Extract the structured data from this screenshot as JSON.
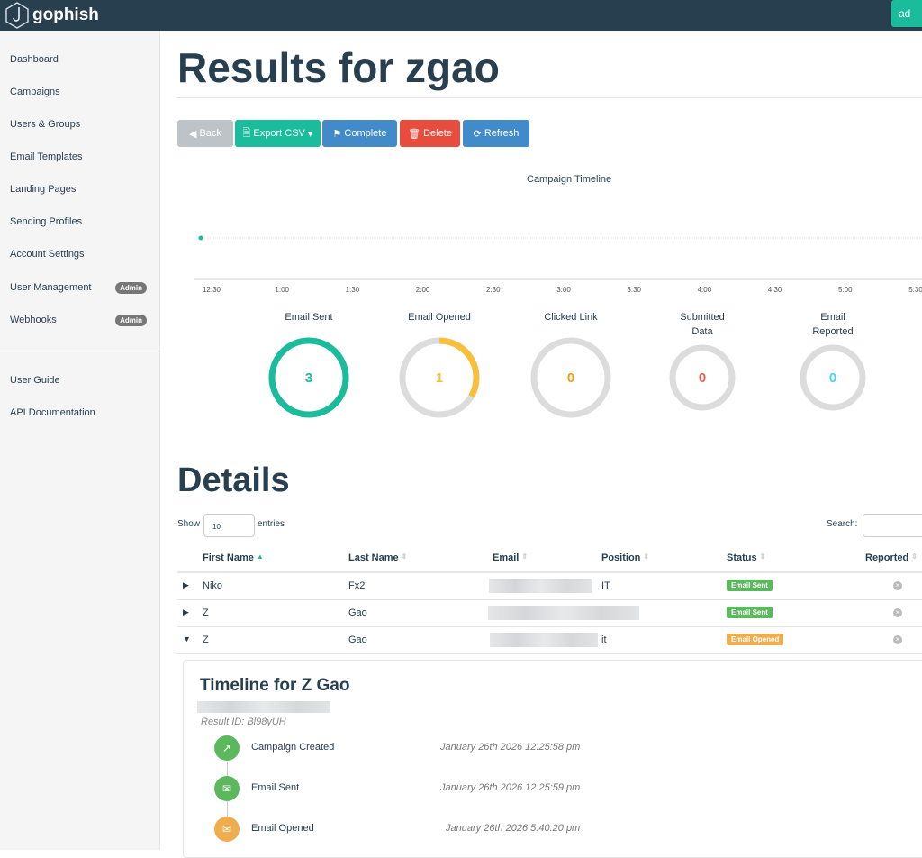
{
  "navbar": {
    "brand": "gophish",
    "user_label": "ad"
  },
  "sidebar": {
    "items": [
      {
        "label": "Dashboard"
      },
      {
        "label": "Campaigns"
      },
      {
        "label": "Users & Groups"
      },
      {
        "label": "Email Templates"
      },
      {
        "label": "Landing Pages"
      },
      {
        "label": "Sending Profiles"
      },
      {
        "label": "Account Settings"
      },
      {
        "label": "User Management",
        "badge": "Admin"
      },
      {
        "label": "Webhooks",
        "badge": "Admin"
      }
    ],
    "links": [
      {
        "label": "User Guide"
      },
      {
        "label": "API Documentation"
      }
    ]
  },
  "page": {
    "title": "Results for zgao"
  },
  "toolbar": {
    "back": "Back",
    "export": "Export CSV",
    "complete": "Complete",
    "delete": "Delete",
    "refresh": "Refresh"
  },
  "timeline_chart": {
    "title": "Campaign Timeline",
    "ticks": [
      "12:30",
      "1:00",
      "1:30",
      "2:00",
      "2:30",
      "3:00",
      "3:30",
      "4:00",
      "4:30",
      "5:00",
      "5:30"
    ]
  },
  "stats": [
    {
      "label": "Email Sent",
      "value": "3",
      "total": 3,
      "color": "#1abc9c"
    },
    {
      "label": "Email Opened",
      "value": "1",
      "total": 3,
      "color": "#f9bf3b"
    },
    {
      "label": "Clicked Link",
      "value": "0",
      "total": 3,
      "color": "#f39c12"
    },
    {
      "label": "Submitted Data",
      "value": "0",
      "total": 3,
      "color": "#f05b4f"
    },
    {
      "label": "Email Reported",
      "value": "0",
      "total": 3,
      "color": "#45d6ef"
    }
  ],
  "details": {
    "title": "Details",
    "show": "Show",
    "entries_value": "10",
    "entries": "entries",
    "search": "Search:",
    "columns": [
      "First Name",
      "Last Name",
      "Email",
      "Position",
      "Status",
      "Reported"
    ],
    "rows": [
      {
        "first": "Niko",
        "last": "Fx2",
        "position": "IT",
        "status": "Email Sent",
        "status_color": "#5cb85c"
      },
      {
        "first": "Z",
        "last": "Gao",
        "position": "",
        "status": "Email Sent",
        "status_color": "#5cb85c"
      },
      {
        "first": "Z",
        "last": "Gao",
        "position": "it",
        "status": "Email Opened",
        "status_color": "#f0ad4e"
      }
    ]
  },
  "result_timeline": {
    "title": "Timeline for Z Gao",
    "result_id": "Result ID: Bl98yUH",
    "events": [
      {
        "label": "Campaign Created",
        "date": "January 26th 2026 12:25:58 pm",
        "icon": "rocket-icon",
        "color": "#5cb85c"
      },
      {
        "label": "Email Sent",
        "date": "January 26th 2026 12:25:59 pm",
        "icon": "envelope-icon",
        "color": "#5cb85c"
      },
      {
        "label": "Email Opened",
        "date": "January 26th 2026 5:40:20 pm",
        "icon": "envelope-open-icon",
        "color": "#f0ad4e"
      }
    ]
  }
}
